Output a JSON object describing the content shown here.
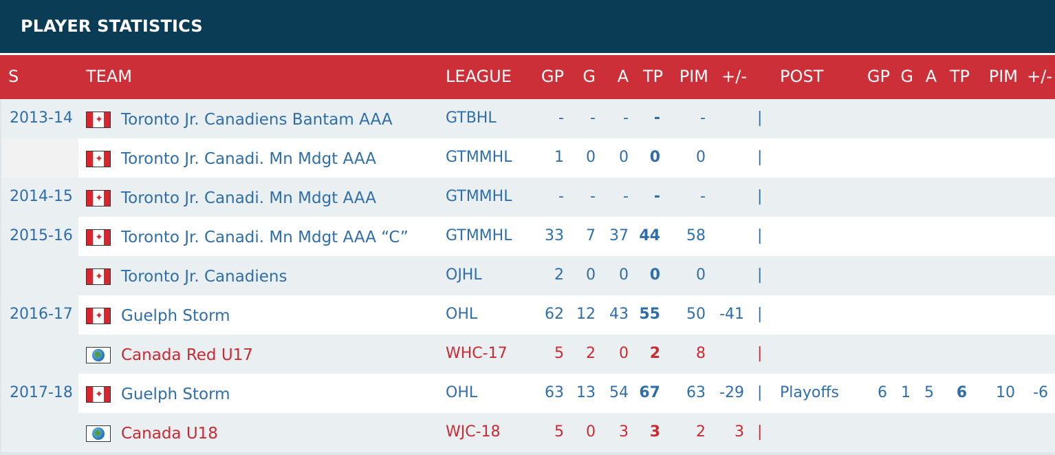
{
  "title": "PLAYER STATISTICS",
  "headers": {
    "season": "S",
    "team": "TEAM",
    "league": "LEAGUE",
    "gp": "GP",
    "g": "G",
    "a": "A",
    "tp": "TP",
    "pim": "PIM",
    "pm": "+/-",
    "post": "POST",
    "post_gp": "GP",
    "post_g": "G",
    "post_a": "A",
    "post_tp": "TP",
    "post_pim": "PIM",
    "post_pm": "+/-"
  },
  "colors": {
    "header_bg": "#0b3c55",
    "header_row_bg": "#cc2f38",
    "link_blue": "#2f6ea8",
    "intl_red": "#c92a33"
  },
  "rows": [
    {
      "season": "2013-14",
      "flag": "canada-flag-icon",
      "team": "Toronto Jr. Canadiens Bantam AAA",
      "league": "GTBHL",
      "gp": "-",
      "g": "-",
      "a": "-",
      "tp": "-",
      "pim": "-",
      "pm": "",
      "sep": "|",
      "post": "",
      "pgp": "",
      "pg": "",
      "pa": "",
      "ptp": "",
      "ppim": "",
      "ppm": "",
      "intl": false
    },
    {
      "season": "",
      "flag": "canada-flag-icon",
      "team": "Toronto Jr. Canadi. Mn Mdgt AAA",
      "league": "GTMMHL",
      "gp": "1",
      "g": "0",
      "a": "0",
      "tp": "0",
      "pim": "0",
      "pm": "",
      "sep": "|",
      "post": "",
      "pgp": "",
      "pg": "",
      "pa": "",
      "ptp": "",
      "ppim": "",
      "ppm": "",
      "intl": false
    },
    {
      "season": "2014-15",
      "flag": "canada-flag-icon",
      "team": "Toronto Jr. Canadi. Mn Mdgt AAA",
      "league": "GTMMHL",
      "gp": "-",
      "g": "-",
      "a": "-",
      "tp": "-",
      "pim": "-",
      "pm": "",
      "sep": "|",
      "post": "",
      "pgp": "",
      "pg": "",
      "pa": "",
      "ptp": "",
      "ppim": "",
      "ppm": "",
      "intl": false
    },
    {
      "season": "2015-16",
      "flag": "canada-flag-icon",
      "team": "Toronto Jr. Canadi. Mn Mdgt AAA “C”",
      "league": "GTMMHL",
      "gp": "33",
      "g": "7",
      "a": "37",
      "tp": "44",
      "pim": "58",
      "pm": "",
      "sep": "|",
      "post": "",
      "pgp": "",
      "pg": "",
      "pa": "",
      "ptp": "",
      "ppim": "",
      "ppm": "",
      "intl": false
    },
    {
      "season": "",
      "flag": "canada-flag-icon",
      "team": "Toronto Jr. Canadiens",
      "league": "OJHL",
      "gp": "2",
      "g": "0",
      "a": "0",
      "tp": "0",
      "pim": "0",
      "pm": "",
      "sep": "|",
      "post": "",
      "pgp": "",
      "pg": "",
      "pa": "",
      "ptp": "",
      "ppim": "",
      "ppm": "",
      "intl": false
    },
    {
      "season": "2016-17",
      "flag": "canada-flag-icon",
      "team": "Guelph Storm",
      "league": "OHL",
      "gp": "62",
      "g": "12",
      "a": "43",
      "tp": "55",
      "pim": "50",
      "pm": "-41",
      "sep": "|",
      "post": "",
      "pgp": "",
      "pg": "",
      "pa": "",
      "ptp": "",
      "ppim": "",
      "ppm": "",
      "intl": false
    },
    {
      "season": "",
      "flag": "globe-icon",
      "team": "Canada Red U17",
      "league": "WHC-17",
      "gp": "5",
      "g": "2",
      "a": "0",
      "tp": "2",
      "pim": "8",
      "pm": "",
      "sep": "|",
      "post": "",
      "pgp": "",
      "pg": "",
      "pa": "",
      "ptp": "",
      "ppim": "",
      "ppm": "",
      "intl": true
    },
    {
      "season": "2017-18",
      "flag": "canada-flag-icon",
      "team": "Guelph Storm",
      "league": "OHL",
      "gp": "63",
      "g": "13",
      "a": "54",
      "tp": "67",
      "pim": "63",
      "pm": "-29",
      "sep": "|",
      "post": "Playoffs",
      "pgp": "6",
      "pg": "1",
      "pa": "5",
      "ptp": "6",
      "ppim": "10",
      "ppm": "-6",
      "intl": false
    },
    {
      "season": "",
      "flag": "globe-icon",
      "team": "Canada U18",
      "league": "WJC-18",
      "gp": "5",
      "g": "0",
      "a": "3",
      "tp": "3",
      "pim": "2",
      "pm": "3",
      "sep": "|",
      "post": "",
      "pgp": "",
      "pg": "",
      "pa": "",
      "ptp": "",
      "ppim": "",
      "ppm": "",
      "intl": true
    }
  ]
}
